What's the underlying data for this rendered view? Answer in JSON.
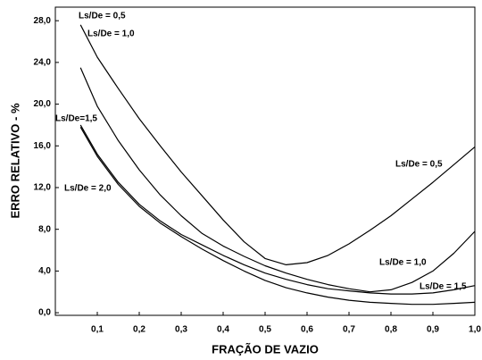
{
  "chart_data": {
    "type": "line",
    "xlabel": "FRAÇÃO DE VAZIO",
    "ylabel": "ERRO RELATIVO - %",
    "x": [
      0.06,
      0.1,
      0.15,
      0.2,
      0.25,
      0.3,
      0.35,
      0.4,
      0.45,
      0.5,
      0.55,
      0.6,
      0.65,
      0.7,
      0.75,
      0.8,
      0.85,
      0.9,
      0.95,
      1.0
    ],
    "series": [
      {
        "name": "Ls/De = 0,5",
        "color": "#000000",
        "values": [
          27.6,
          24.5,
          21.5,
          18.6,
          16.0,
          13.5,
          11.2,
          8.9,
          6.8,
          5.2,
          4.6,
          4.8,
          5.5,
          6.6,
          7.9,
          9.3,
          10.9,
          12.5,
          14.2,
          15.9
        ]
      },
      {
        "name": "Ls/De = 1,0",
        "color": "#000000",
        "values": [
          23.5,
          19.8,
          16.5,
          13.7,
          11.3,
          9.3,
          7.6,
          6.4,
          5.4,
          4.5,
          3.8,
          3.2,
          2.7,
          2.3,
          2.0,
          2.2,
          2.9,
          4.0,
          5.7,
          7.8
        ]
      },
      {
        "name": "Ls/De=1,5",
        "color": "#000000",
        "values": [
          18.0,
          15.2,
          12.5,
          10.4,
          8.8,
          7.5,
          6.5,
          5.5,
          4.6,
          3.8,
          3.2,
          2.7,
          2.3,
          2.1,
          1.9,
          1.8,
          1.8,
          1.9,
          2.2,
          2.6
        ]
      },
      {
        "name": "Ls/De = 2,0",
        "color": "#000000",
        "values": [
          17.8,
          15.0,
          12.3,
          10.2,
          8.6,
          7.3,
          6.1,
          5.0,
          4.0,
          3.1,
          2.4,
          1.9,
          1.5,
          1.2,
          1.0,
          0.9,
          0.8,
          0.8,
          0.9,
          1.0
        ]
      }
    ],
    "annotations": [
      "Ls/De = 0,5",
      "Ls/De = 1,0",
      "Ls/De = 1,5"
    ],
    "xlim": [
      0,
      1.0
    ],
    "ylim": [
      -0.25,
      29.3
    ],
    "xticks": [
      {
        "value": 0.1,
        "label": "0,1"
      },
      {
        "value": 0.2,
        "label": "0,2"
      },
      {
        "value": 0.3,
        "label": "0,3"
      },
      {
        "value": 0.4,
        "label": "0,4"
      },
      {
        "value": 0.5,
        "label": "0,5"
      },
      {
        "value": 0.6,
        "label": "0,6"
      },
      {
        "value": 0.7,
        "label": "0,7"
      },
      {
        "value": 0.8,
        "label": "0,8"
      },
      {
        "value": 0.9,
        "label": "0,9"
      },
      {
        "value": 1.0,
        "label": "1,0"
      }
    ],
    "yticks": [
      {
        "value": 0,
        "label": "0,0"
      },
      {
        "value": 4,
        "label": "4,0"
      },
      {
        "value": 8,
        "label": "8,0"
      },
      {
        "value": 12,
        "label": "12,0"
      },
      {
        "value": 16,
        "label": "16,0"
      },
      {
        "value": 20,
        "label": "20,0"
      },
      {
        "value": 24,
        "label": "24,0"
      },
      {
        "value": 28,
        "label": "28,0"
      }
    ],
    "grid": false
  }
}
